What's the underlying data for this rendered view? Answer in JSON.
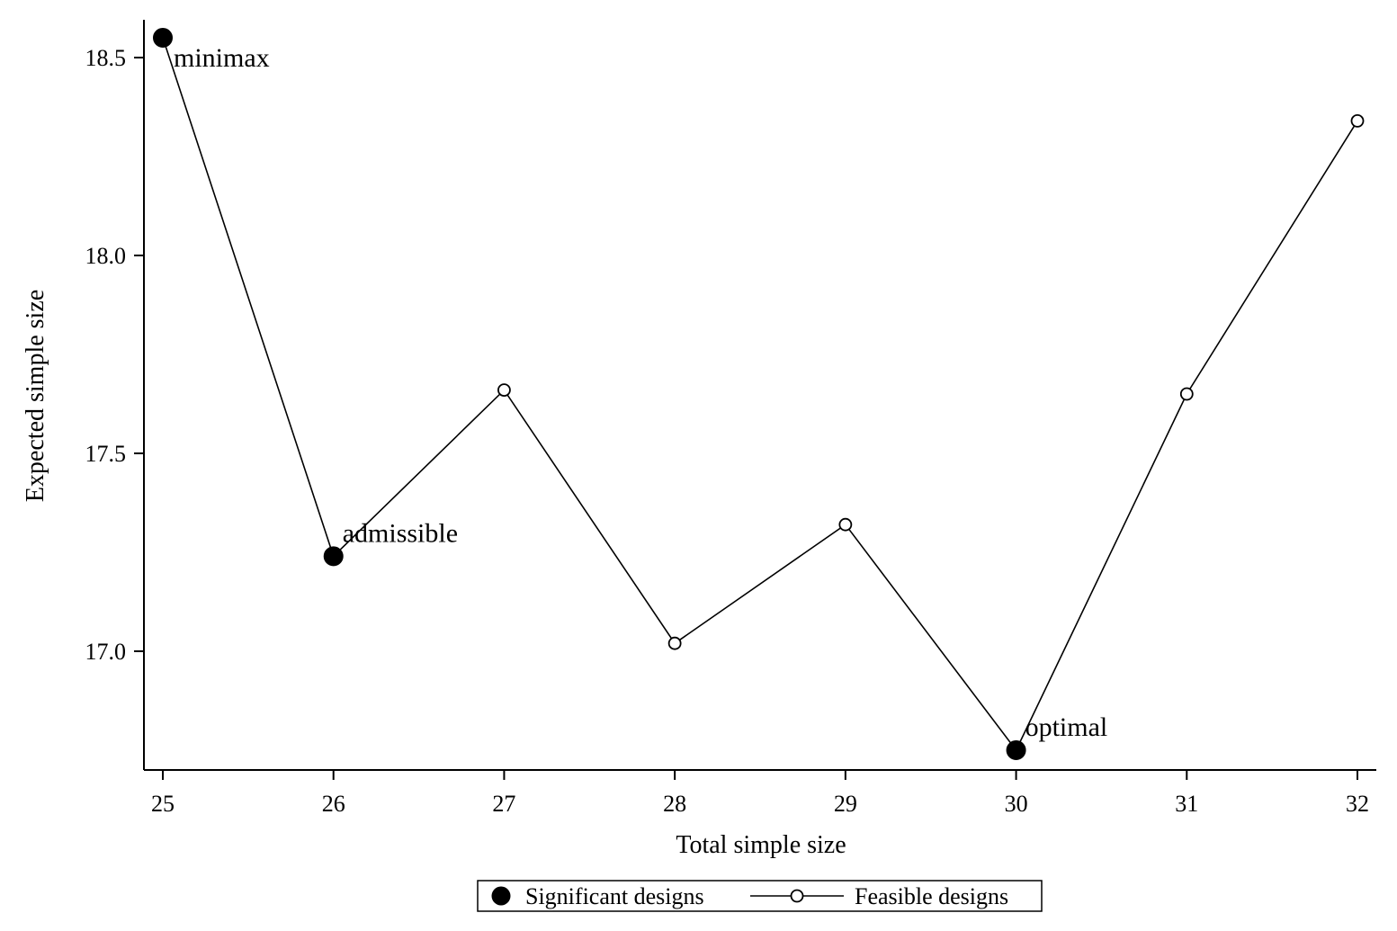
{
  "chart_data": {
    "type": "line",
    "title": "",
    "xlabel": "Total simple size",
    "ylabel": "Expected simple size",
    "xlim": [
      24.9,
      32.1
    ],
    "ylim": [
      16.7,
      18.6
    ],
    "x_ticks": [
      25,
      26,
      27,
      28,
      29,
      30,
      31,
      32
    ],
    "x_tick_labels": [
      "25",
      "26",
      "27",
      "28",
      "29",
      "30",
      "31",
      "32"
    ],
    "y_ticks": [
      17.0,
      17.5,
      18.0,
      18.5
    ],
    "y_tick_labels": [
      "17.0",
      "17.5",
      "18.0",
      "18.5"
    ],
    "grid": false,
    "legend_position": "bottom",
    "series": [
      {
        "name": "Significant designs",
        "marker": "filled-circle",
        "line": false,
        "x": [
          25,
          26,
          30
        ],
        "y": [
          18.55,
          17.24,
          16.75
        ],
        "labels": [
          "minimax",
          "admissible",
          "optimal"
        ]
      },
      {
        "name": "Feasible designs",
        "marker": "hollow-circle",
        "line": true,
        "x": [
          25,
          26,
          27,
          28,
          29,
          30,
          31,
          32
        ],
        "y": [
          18.55,
          17.24,
          17.66,
          17.02,
          17.32,
          16.75,
          17.65,
          18.34
        ]
      }
    ],
    "colors": {
      "line": "#000000",
      "marker_fill": "#000000",
      "hollow_fill": "#ffffff",
      "background": "#ffffff"
    }
  }
}
